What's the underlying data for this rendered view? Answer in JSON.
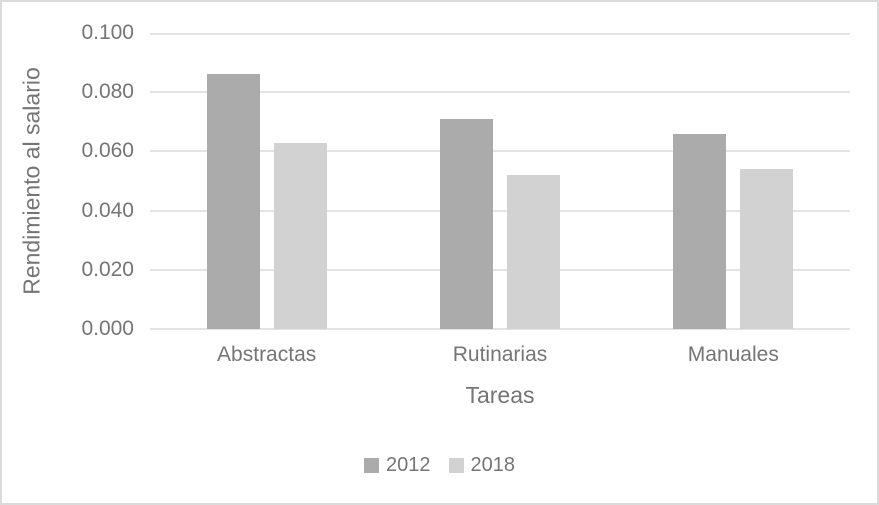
{
  "chart_data": {
    "type": "bar",
    "title": "",
    "categories": [
      "Abstractas",
      "Rutinarias",
      "Manuales"
    ],
    "series": [
      {
        "name": "2012",
        "color": "#ABABAB",
        "values": [
          0.086,
          0.071,
          0.066
        ]
      },
      {
        "name": "2018",
        "color": "#D2D2D2",
        "values": [
          0.063,
          0.052,
          0.054
        ]
      }
    ],
    "xlabel": "Tareas",
    "ylabel": "Rendimiento al salario",
    "ylim": [
      0,
      0.1
    ],
    "ytick_step": 0.02,
    "ytick_labels": [
      "0.000",
      "0.020",
      "0.040",
      "0.060",
      "0.080",
      "0.100"
    ],
    "grid": true,
    "legend_position": "bottom-center"
  },
  "colors": {
    "gridline": "#E3E3E3",
    "axis_text": "#757575",
    "figure_border": "#DBDBDB",
    "background": "#FFFFFF"
  }
}
